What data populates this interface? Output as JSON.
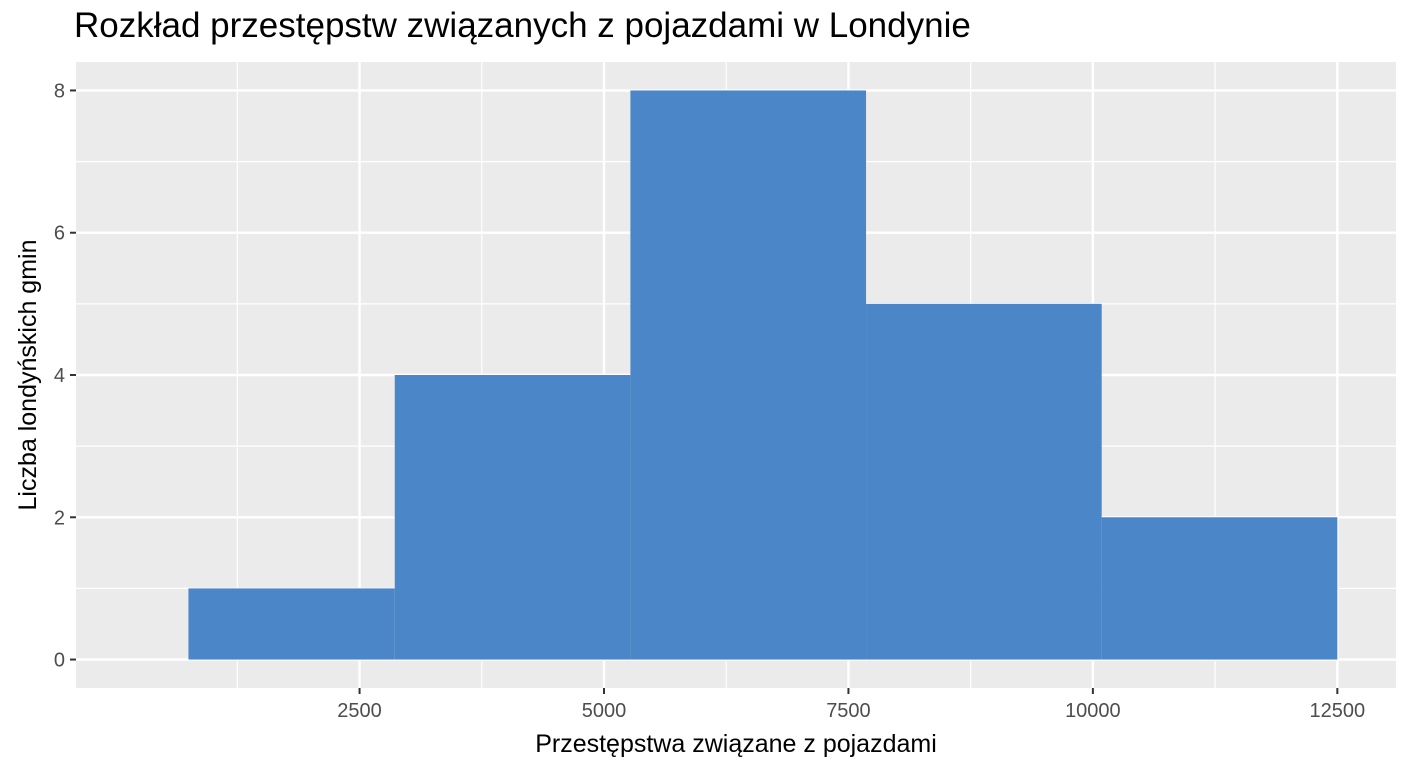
{
  "chart_data": {
    "type": "bar",
    "title": "Rozkład przestępstw związanych z pojazdami w Londynie",
    "xlabel": "Przestępstwa związane z pojazdami",
    "ylabel": "Liczba londyńskich gmin",
    "bin_edges": [
      750,
      2860,
      5270,
      7680,
      10090,
      12500
    ],
    "values": [
      1,
      4,
      8,
      5,
      2
    ],
    "xlim": [
      -400,
      13100
    ],
    "ylim": [
      -0.4,
      8.4
    ],
    "x_ticks": [
      2500,
      5000,
      7500,
      10000,
      12500
    ],
    "y_ticks": [
      0,
      2,
      4,
      6,
      8
    ],
    "grid": true,
    "legend": "none",
    "colors": {
      "bar": "#4a86c8",
      "panel": "#ebebeb",
      "grid": "#ffffff",
      "tick": "#4d4d4d"
    }
  }
}
